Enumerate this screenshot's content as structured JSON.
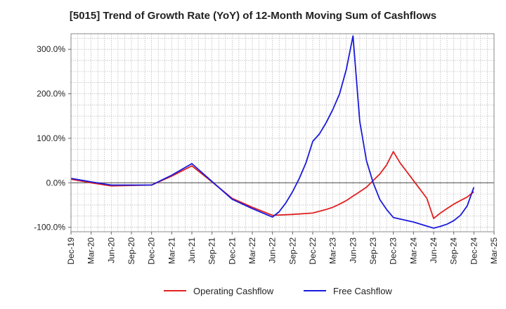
{
  "chart_data": {
    "type": "line",
    "title": "[5015]  Trend of Growth Rate (YoY) of 12-Month Moving Sum of Cashflows",
    "xlabel": "",
    "ylabel": "",
    "x_tick_labels": [
      "Dec-19",
      "Mar-20",
      "Jun-20",
      "Sep-20",
      "Dec-20",
      "Mar-21",
      "Jun-21",
      "Sep-21",
      "Dec-21",
      "Mar-22",
      "Jun-22",
      "Sep-22",
      "Dec-22",
      "Mar-23",
      "Jun-23",
      "Sep-23",
      "Dec-23",
      "Mar-24",
      "Jun-24",
      "Sep-24",
      "Dec-24",
      "Mar-25"
    ],
    "y_ticks": [
      300,
      200,
      100,
      0,
      -100
    ],
    "y_tick_labels": [
      "300.0%",
      "200.0%",
      "100.0%",
      "0.0%",
      "-100.0%"
    ],
    "ylim": [
      -110,
      335
    ],
    "grid": true,
    "legend_position": "bottom-center",
    "series": [
      {
        "name": "Operating Cashflow",
        "color": "#e02020",
        "points": [
          [
            "Dec-19",
            8
          ],
          [
            "Mar-20",
            0
          ],
          [
            "Jun-20",
            -7
          ],
          [
            "Sep-20",
            -6
          ],
          [
            "Dec-20",
            -5
          ],
          [
            "Mar-21",
            15
          ],
          [
            "Jun-21",
            38
          ],
          [
            "Sep-21",
            2
          ],
          [
            "Dec-21",
            -35
          ],
          [
            "Mar-22",
            -55
          ],
          [
            "Jun-22",
            -73
          ],
          [
            "Sep-22",
            -71
          ],
          [
            "Dec-22",
            -68
          ],
          [
            "Jan-23",
            -64
          ],
          [
            "Feb-23",
            -60
          ],
          [
            "Mar-23",
            -55
          ],
          [
            "Apr-23",
            -48
          ],
          [
            "May-23",
            -40
          ],
          [
            "Jun-23",
            -30
          ],
          [
            "Jul-23",
            -20
          ],
          [
            "Aug-23",
            -10
          ],
          [
            "Sep-23",
            5
          ],
          [
            "Oct-23",
            20
          ],
          [
            "Nov-23",
            40
          ],
          [
            "Dec-23",
            70
          ],
          [
            "Jan-24",
            45
          ],
          [
            "Feb-24",
            25
          ],
          [
            "Mar-24",
            5
          ],
          [
            "Apr-24",
            -15
          ],
          [
            "May-24",
            -35
          ],
          [
            "Jun-24",
            -80
          ],
          [
            "Jul-24",
            -68
          ],
          [
            "Aug-24",
            -58
          ],
          [
            "Sep-24",
            -48
          ],
          [
            "Oct-24",
            -40
          ],
          [
            "Nov-24",
            -32
          ],
          [
            "Dec-24",
            -20
          ]
        ]
      },
      {
        "name": "Free Cashflow",
        "color": "#1a1adc",
        "points": [
          [
            "Dec-19",
            10
          ],
          [
            "Mar-20",
            2
          ],
          [
            "Jun-20",
            -5
          ],
          [
            "Sep-20",
            -5
          ],
          [
            "Dec-20",
            -5
          ],
          [
            "Mar-21",
            17
          ],
          [
            "Jun-21",
            43
          ],
          [
            "Sep-21",
            3
          ],
          [
            "Dec-21",
            -37
          ],
          [
            "Mar-22",
            -58
          ],
          [
            "Jun-22",
            -77
          ],
          [
            "Jul-22",
            -65
          ],
          [
            "Aug-22",
            -45
          ],
          [
            "Sep-22",
            -20
          ],
          [
            "Oct-22",
            10
          ],
          [
            "Nov-22",
            45
          ],
          [
            "Dec-22",
            93
          ],
          [
            "Jan-23",
            110
          ],
          [
            "Feb-23",
            135
          ],
          [
            "Mar-23",
            165
          ],
          [
            "Apr-23",
            200
          ],
          [
            "May-23",
            255
          ],
          [
            "Jun-23",
            330
          ],
          [
            "Jul-23",
            138
          ],
          [
            "Aug-23",
            50
          ],
          [
            "Sep-23",
            0
          ],
          [
            "Oct-23",
            -38
          ],
          [
            "Nov-23",
            -60
          ],
          [
            "Dec-23",
            -78
          ],
          [
            "Mar-24",
            -88
          ],
          [
            "Jun-24",
            -102
          ],
          [
            "Jul-24",
            -98
          ],
          [
            "Aug-24",
            -93
          ],
          [
            "Sep-24",
            -85
          ],
          [
            "Oct-24",
            -73
          ],
          [
            "Nov-24",
            -52
          ],
          [
            "Dec-24",
            -10
          ]
        ]
      }
    ]
  }
}
